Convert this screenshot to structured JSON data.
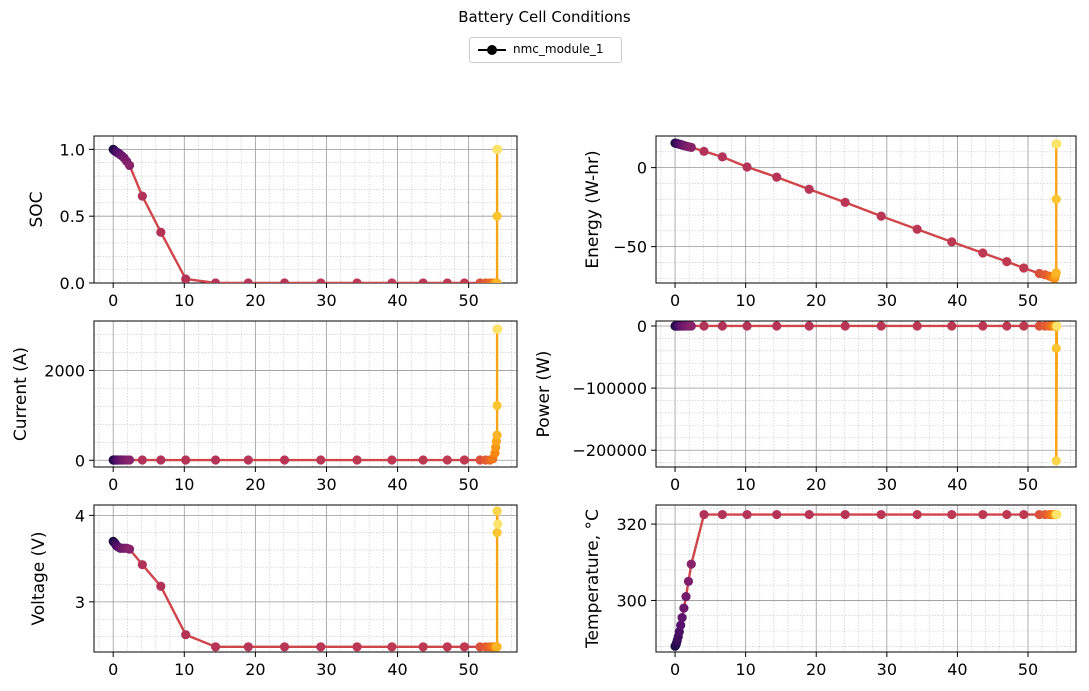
{
  "figure": {
    "title": "Battery Cell Conditions",
    "legend": {
      "label": "nmc_module_1",
      "placement": "top-center",
      "color": "#000000"
    }
  },
  "colors": {
    "line": "#d0454a",
    "grid_major": "#9a9a9a",
    "grid_minor": "#c4c4c4",
    "colormap": "inferno"
  },
  "chart_data": [
    {
      "id": "soc",
      "type": "line",
      "title": "",
      "xlabel": "",
      "ylabel": "SOC",
      "xlim": [
        -2.7,
        56.8
      ],
      "ylim": [
        0,
        1.1
      ],
      "grid": true,
      "xticks": [
        0,
        10,
        20,
        30,
        40,
        50
      ],
      "yticks": [
        0.0,
        0.5,
        1.0
      ],
      "yticklabels": [
        "0.0",
        "0.5",
        "1.0"
      ],
      "series": [
        {
          "x": [
            0,
            0.1,
            0.2,
            0.3,
            0.45,
            0.6,
            0.8,
            1.0,
            1.25,
            1.55,
            1.9,
            2.3,
            4.1,
            6.7,
            10.2,
            14.4,
            19.0,
            24.1,
            29.2,
            34.3,
            39.2,
            43.6,
            47.0,
            49.4,
            51.6,
            52.4,
            53.0,
            53.4,
            53.7,
            53.8,
            53.9,
            54.0,
            54.0,
            54.0,
            54.1
          ],
          "y": [
            1.0,
            0.995,
            0.99,
            0.985,
            0.98,
            0.975,
            0.97,
            0.96,
            0.95,
            0.935,
            0.91,
            0.88,
            0.65,
            0.38,
            0.03,
            0.0,
            0.0,
            0.0,
            0.0,
            0.0,
            0.0,
            0.0,
            0.0,
            0.0,
            0.0,
            0.0,
            0.0,
            0.0,
            0.0,
            0.0,
            0.0,
            0.0,
            0.5,
            1.0,
            1.0
          ]
        }
      ]
    },
    {
      "id": "energy",
      "type": "line",
      "title": "",
      "xlabel": "",
      "ylabel": "Energy (W-hr)",
      "xlim": [
        -2.7,
        56.8
      ],
      "ylim": [
        -73,
        20
      ],
      "grid": true,
      "xticks": [
        0,
        10,
        20,
        30,
        40,
        50
      ],
      "yticks": [
        -50,
        0
      ],
      "yticklabels": [
        "−50",
        "0"
      ],
      "series": [
        {
          "x": [
            0,
            0.1,
            0.2,
            0.3,
            0.45,
            0.6,
            0.8,
            1.0,
            1.25,
            1.55,
            1.9,
            2.3,
            4.1,
            6.7,
            10.2,
            14.4,
            19.0,
            24.1,
            29.2,
            34.3,
            39.2,
            43.6,
            47.0,
            49.4,
            51.6,
            52.4,
            53.0,
            53.4,
            53.7,
            53.8,
            53.9,
            54.0,
            54.0,
            54.0,
            54.1
          ],
          "y": [
            15.5,
            15.4,
            15.3,
            15.2,
            15.0,
            14.8,
            14.6,
            14.3,
            14.0,
            13.6,
            13.2,
            12.8,
            10.3,
            6.8,
            0.4,
            -6.0,
            -13.7,
            -22.0,
            -30.7,
            -39.0,
            -47.0,
            -54.0,
            -59.5,
            -63.5,
            -67.0,
            -67.8,
            -68.6,
            -69.3,
            -69.8,
            -69.9,
            -68.0,
            -66.5,
            -20.0,
            15.0,
            15.0
          ]
        }
      ]
    },
    {
      "id": "current",
      "type": "line",
      "title": "",
      "xlabel": "",
      "ylabel": "Current (A)",
      "xlim": [
        -2.7,
        56.8
      ],
      "ylim": [
        -150,
        3100
      ],
      "grid": true,
      "xticks": [
        0,
        10,
        20,
        30,
        40,
        50
      ],
      "yticks": [
        0,
        2000
      ],
      "yticklabels": [
        "0",
        "2000"
      ],
      "series": [
        {
          "x": [
            0,
            0.1,
            0.2,
            0.3,
            0.45,
            0.6,
            0.8,
            1.0,
            1.25,
            1.55,
            1.9,
            2.3,
            4.1,
            6.7,
            10.2,
            14.4,
            19.0,
            24.1,
            29.2,
            34.3,
            39.2,
            43.6,
            47.0,
            49.4,
            51.6,
            52.4,
            53.0,
            53.4,
            53.7,
            53.8,
            53.9,
            54.0,
            54.0,
            54.0,
            54.1
          ],
          "y": [
            5,
            5,
            5,
            5,
            5,
            5,
            5,
            5,
            5,
            5,
            5,
            5,
            5,
            5,
            5,
            5,
            5,
            5,
            5,
            5,
            5,
            5,
            5,
            5,
            5,
            5,
            5,
            30,
            160,
            290,
            420,
            560,
            1220,
            2920,
            2920
          ]
        }
      ]
    },
    {
      "id": "power",
      "type": "line",
      "title": "",
      "xlabel": "",
      "ylabel": "Power (W)",
      "xlim": [
        -2.7,
        56.8
      ],
      "ylim": [
        -227000,
        8000
      ],
      "grid": true,
      "xticks": [
        0,
        10,
        20,
        30,
        40,
        50
      ],
      "yticks": [
        -200000,
        -100000,
        0
      ],
      "yticklabels": [
        "−200000",
        "−100000",
        "0"
      ],
      "series": [
        {
          "x": [
            0,
            0.1,
            0.2,
            0.3,
            0.45,
            0.6,
            0.8,
            1.0,
            1.25,
            1.55,
            1.9,
            2.3,
            4.1,
            6.7,
            10.2,
            14.4,
            19.0,
            24.1,
            29.2,
            34.3,
            39.2,
            43.6,
            47.0,
            49.4,
            51.6,
            52.4,
            53.0,
            53.4,
            53.7,
            53.8,
            53.9,
            54.0,
            54.0,
            54.0,
            54.1
          ],
          "y": [
            0,
            0,
            0,
            0,
            0,
            0,
            0,
            0,
            0,
            0,
            0,
            0,
            0,
            0,
            0,
            0,
            0,
            0,
            0,
            0,
            0,
            0,
            0,
            0,
            0,
            0,
            0,
            0,
            0,
            0,
            -500,
            -1500,
            -36000,
            -217000,
            0
          ]
        }
      ]
    },
    {
      "id": "voltage",
      "type": "line",
      "title": "",
      "xlabel": "",
      "ylabel": "Voltage (V)",
      "xlim": [
        -2.7,
        56.8
      ],
      "ylim": [
        2.42,
        4.12
      ],
      "grid": true,
      "xticks": [
        0,
        10,
        20,
        30,
        40,
        50
      ],
      "yticks": [
        3,
        4
      ],
      "yticklabels": [
        "3",
        "4"
      ],
      "series": [
        {
          "x": [
            0,
            0.1,
            0.2,
            0.3,
            0.45,
            0.6,
            0.8,
            1.0,
            1.25,
            1.55,
            1.9,
            2.3,
            4.1,
            6.7,
            10.2,
            14.4,
            19.0,
            24.1,
            29.2,
            34.3,
            39.2,
            43.6,
            47.0,
            49.4,
            51.6,
            52.4,
            53.0,
            53.4,
            53.7,
            53.8,
            53.9,
            54.0,
            54.0,
            54.0,
            54.1
          ],
          "y": [
            3.7,
            3.69,
            3.68,
            3.67,
            3.65,
            3.64,
            3.63,
            3.62,
            3.62,
            3.62,
            3.62,
            3.61,
            3.43,
            3.18,
            2.62,
            2.48,
            2.48,
            2.48,
            2.48,
            2.48,
            2.48,
            2.48,
            2.48,
            2.48,
            2.48,
            2.48,
            2.48,
            2.48,
            2.48,
            2.48,
            2.48,
            2.48,
            3.8,
            4.05,
            3.9
          ]
        }
      ]
    },
    {
      "id": "temperature",
      "type": "line",
      "title": "",
      "xlabel": "",
      "ylabel": "Temperature, °C",
      "xlim": [
        -2.7,
        56.8
      ],
      "ylim": [
        286.5,
        325
      ],
      "grid": true,
      "xticks": [
        0,
        10,
        20,
        30,
        40,
        50
      ],
      "yticks": [
        300,
        320
      ],
      "yticklabels": [
        "300",
        "320"
      ],
      "series": [
        {
          "x": [
            0,
            0.1,
            0.2,
            0.3,
            0.45,
            0.6,
            0.8,
            1.0,
            1.25,
            1.55,
            1.9,
            2.3,
            4.1,
            6.7,
            10.2,
            14.4,
            19.0,
            24.1,
            29.2,
            34.3,
            39.2,
            43.6,
            47.0,
            49.4,
            51.6,
            52.4,
            53.0,
            53.4,
            53.7,
            53.8,
            53.9,
            54.0,
            54.0,
            54.0,
            54.1
          ],
          "y": [
            288,
            288.3,
            288.8,
            289.5,
            290.5,
            291.8,
            293.5,
            295.5,
            298,
            301,
            305,
            309.5,
            322.5,
            322.5,
            322.5,
            322.5,
            322.5,
            322.5,
            322.5,
            322.5,
            322.5,
            322.5,
            322.5,
            322.5,
            322.5,
            322.5,
            322.5,
            322.5,
            322.5,
            322.5,
            322.5,
            322.5,
            322.5,
            322.5,
            322.5
          ]
        }
      ]
    }
  ]
}
